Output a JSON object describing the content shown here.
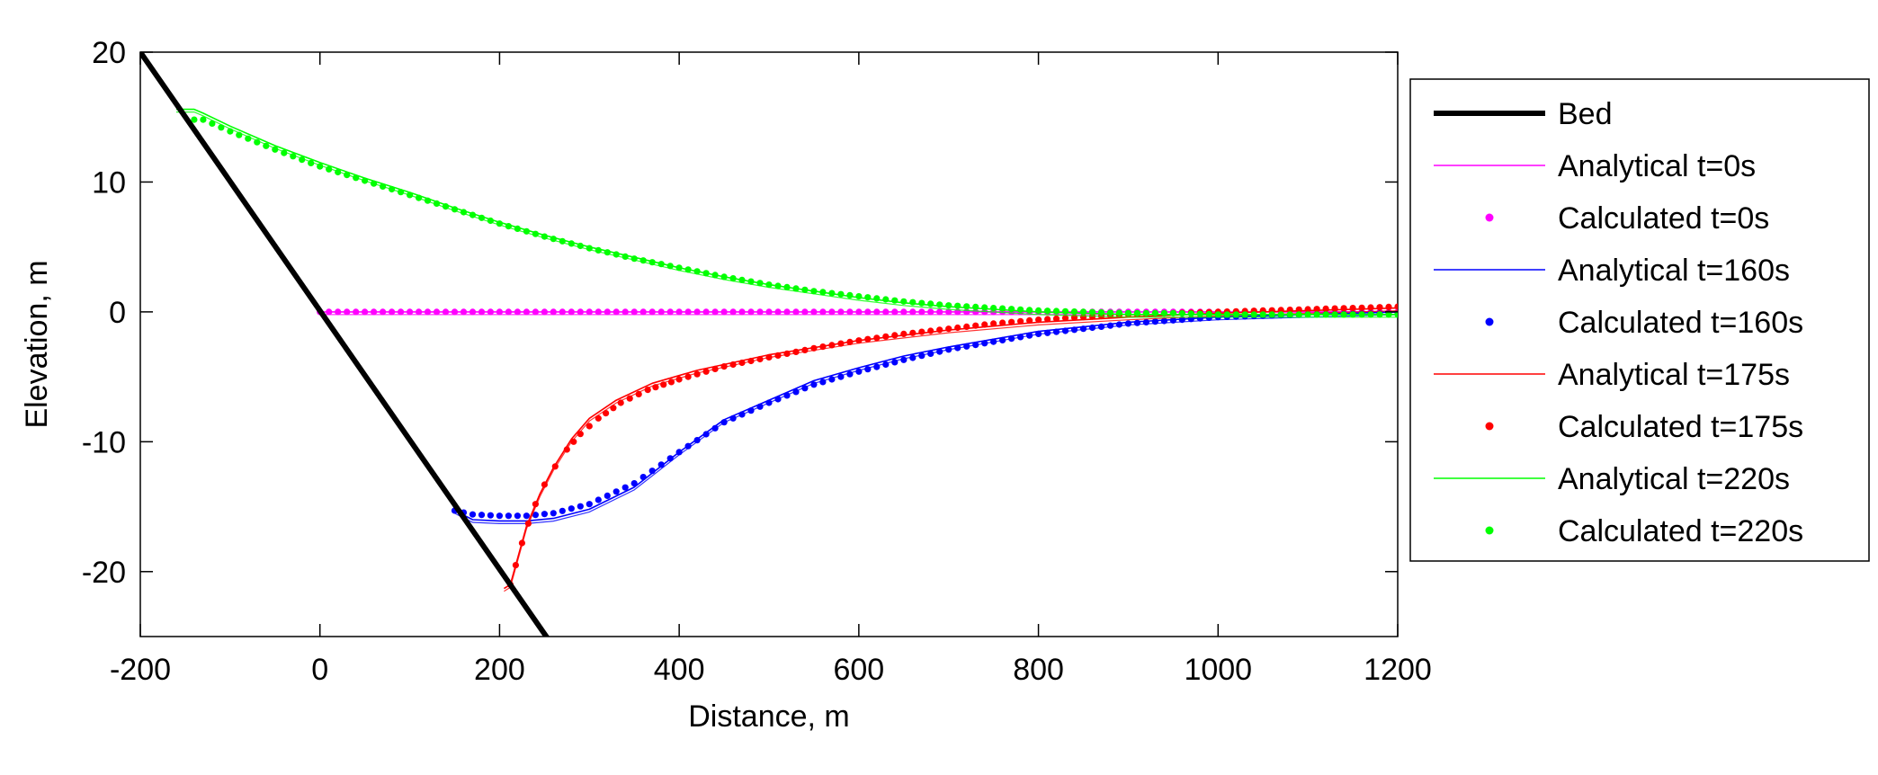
{
  "chart_data": {
    "type": "line",
    "title": "",
    "xlabel": "Distance, m",
    "ylabel": "Elevation, m",
    "xlim": [
      -200,
      1200
    ],
    "ylim": [
      -25,
      20
    ],
    "xticks": [
      -200,
      0,
      200,
      400,
      600,
      800,
      1000,
      1200
    ],
    "yticks": [
      -20,
      -10,
      0,
      10,
      20
    ],
    "xtick_labels": [
      "-200",
      "0",
      "200",
      "400",
      "600",
      "800",
      "1000",
      "1200"
    ],
    "ytick_labels": [
      "-20",
      "-10",
      "0",
      "10",
      "20"
    ],
    "grid": false,
    "legend_position": "outside-right",
    "series": [
      {
        "name": "Bed",
        "style": "line",
        "color": "#000000",
        "x": [
          -200,
          255
        ],
        "y": [
          20,
          -25.3
        ]
      },
      {
        "name": "Analytical t=0s",
        "style": "line",
        "color": "#ff00ff",
        "x": [
          0,
          1200
        ],
        "y": [
          0,
          0
        ]
      },
      {
        "name": "Calculated t=0s",
        "style": "markers",
        "color": "#ff00ff",
        "x": [
          0,
          1200
        ],
        "y": [
          0,
          0
        ]
      },
      {
        "name": "Analytical t=160s",
        "style": "line",
        "color": "#0000ff",
        "x": [
          150,
          170,
          200,
          230,
          260,
          300,
          350,
          400,
          450,
          500,
          550,
          600,
          650,
          700,
          800,
          900,
          1000,
          1100,
          1200
        ],
        "y": [
          -15.3,
          -16.0,
          -16.1,
          -16.1,
          -15.9,
          -15.2,
          -13.5,
          -10.8,
          -8.3,
          -6.8,
          -5.3,
          -4.3,
          -3.4,
          -2.7,
          -1.5,
          -0.8,
          -0.4,
          -0.2,
          0
        ]
      },
      {
        "name": "Calculated t=160s",
        "style": "markers",
        "color": "#0000ff",
        "x": [
          150,
          170,
          200,
          230,
          260,
          300,
          350,
          400,
          450,
          500,
          550,
          600,
          650,
          700,
          800,
          900,
          1000,
          1100,
          1200
        ],
        "y": [
          -15.3,
          -15.6,
          -15.7,
          -15.7,
          -15.5,
          -14.8,
          -13.2,
          -10.8,
          -8.5,
          -7.0,
          -5.6,
          -4.6,
          -3.7,
          -2.9,
          -1.7,
          -0.9,
          -0.4,
          -0.2,
          -0.1
        ]
      },
      {
        "name": "Analytical t=175s",
        "style": "line",
        "color": "#ff0000",
        "x": [
          205,
          212,
          220,
          230,
          245,
          260,
          280,
          300,
          330,
          370,
          420,
          500,
          600,
          700,
          800,
          900,
          1000,
          1100,
          1200
        ],
        "y": [
          -21.3,
          -21.0,
          -19.0,
          -16.5,
          -14.0,
          -12.0,
          -9.8,
          -8.2,
          -6.8,
          -5.5,
          -4.5,
          -3.3,
          -2.2,
          -1.4,
          -0.8,
          -0.4,
          -0.1,
          0.1,
          0.3
        ]
      },
      {
        "name": "Calculated t=175s",
        "style": "markers",
        "color": "#ff0000",
        "x": [
          212,
          218,
          225,
          232,
          240,
          250,
          262,
          275,
          290,
          310,
          335,
          365,
          400,
          450,
          500,
          550,
          600,
          650,
          700,
          750,
          800,
          850,
          900,
          950,
          1000,
          1050,
          1100,
          1150,
          1200
        ],
        "y": [
          -21.0,
          -19.5,
          -17.8,
          -16.3,
          -14.8,
          -13.3,
          -11.9,
          -10.6,
          -9.4,
          -8.2,
          -7.0,
          -6.0,
          -5.2,
          -4.2,
          -3.5,
          -2.8,
          -2.2,
          -1.7,
          -1.3,
          -0.9,
          -0.6,
          -0.4,
          -0.2,
          -0.1,
          0.0,
          0.1,
          0.2,
          0.3,
          0.4
        ]
      },
      {
        "name": "Analytical t=220s",
        "style": "line",
        "color": "#00ff00",
        "x": [
          -160,
          -140,
          -130,
          -100,
          -50,
          0,
          50,
          100,
          150,
          200,
          250,
          300,
          350,
          400,
          450,
          500,
          550,
          600,
          650,
          700,
          750,
          800,
          850,
          900,
          950,
          1000,
          1100,
          1200
        ],
        "y": [
          15.6,
          15.6,
          15.3,
          14.3,
          12.8,
          11.5,
          10.3,
          9.2,
          8.0,
          6.9,
          5.9,
          5.0,
          4.2,
          3.4,
          2.7,
          2.1,
          1.6,
          1.1,
          0.7,
          0.4,
          0.2,
          0.0,
          -0.1,
          -0.2,
          -0.2,
          -0.2,
          -0.2,
          -0.2
        ]
      },
      {
        "name": "Calculated t=220s",
        "style": "markers",
        "color": "#00ff00",
        "x": [
          -140,
          -130,
          -100,
          -50,
          0,
          50,
          100,
          150,
          200,
          250,
          300,
          350,
          400,
          450,
          500,
          550,
          600,
          650,
          700,
          750,
          800,
          850,
          900,
          950,
          1000,
          1100,
          1200
        ],
        "y": [
          14.8,
          14.8,
          13.9,
          12.5,
          11.2,
          10.1,
          9.0,
          7.9,
          6.8,
          5.8,
          4.9,
          4.1,
          3.4,
          2.7,
          2.1,
          1.6,
          1.2,
          0.8,
          0.5,
          0.3,
          0.1,
          0.0,
          -0.1,
          -0.1,
          -0.2,
          -0.2,
          -0.2
        ]
      }
    ]
  }
}
